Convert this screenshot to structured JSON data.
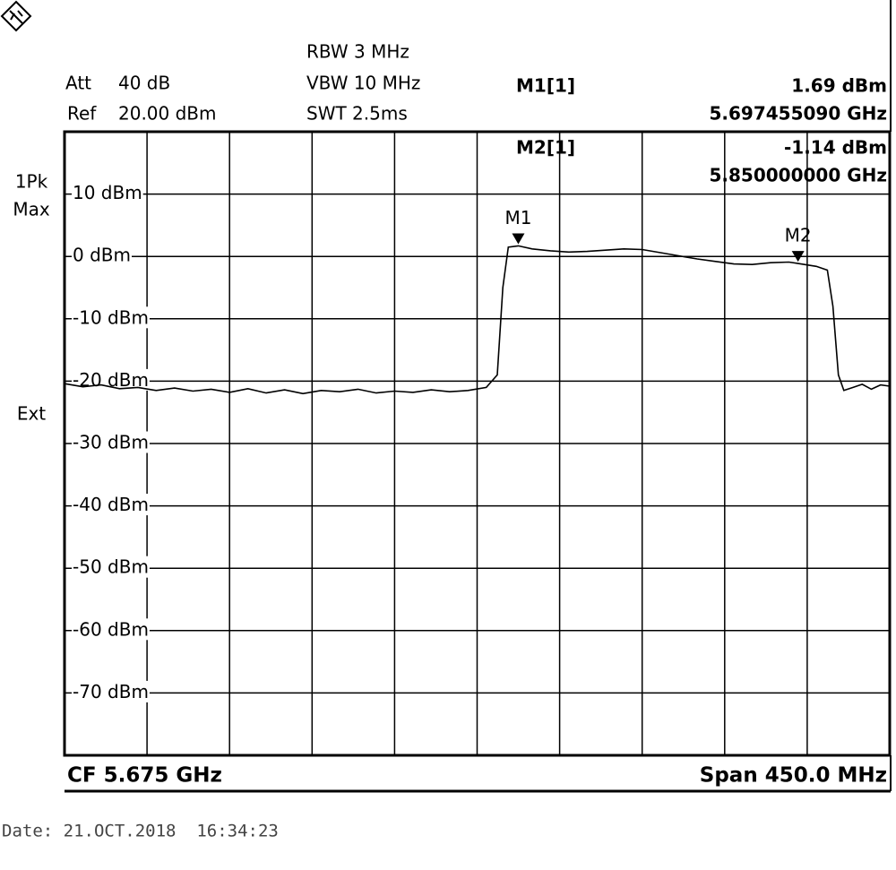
{
  "chart_data": {
    "type": "line",
    "settings": [
      {
        "label": "Att",
        "value": "40 dB"
      },
      {
        "label": "Ref",
        "value": "20.00 dBm"
      }
    ],
    "sweep": [
      "RBW 3 MHz",
      "VBW 10 MHz",
      "SWT 2.5ms"
    ],
    "trace_mode": [
      "1Pk",
      "Max"
    ],
    "trigger": "Ext",
    "center": "CF 5.675 GHz",
    "span": "Span 450.0 MHz",
    "date": "Date: 21.OCT.2018  16:34:23",
    "xlim": [
      5.45,
      5.9
    ],
    "xticks": [
      5.45,
      5.495,
      5.54,
      5.585,
      5.63,
      5.675,
      5.72,
      5.765,
      5.81,
      5.855,
      5.9
    ],
    "ylim": [
      -80,
      20
    ],
    "yticks": [
      {
        "value": 10,
        "label": "10 dBm"
      },
      {
        "value": 0,
        "label": "0 dBm"
      },
      {
        "value": -10,
        "label": "-10 dBm"
      },
      {
        "value": -20,
        "label": "-20 dBm"
      },
      {
        "value": -30,
        "label": "-30 dBm"
      },
      {
        "value": -40,
        "label": "-40 dBm"
      },
      {
        "value": -50,
        "label": "-50 dBm"
      },
      {
        "value": -60,
        "label": "-60 dBm"
      },
      {
        "value": -70,
        "label": "-70 dBm"
      }
    ],
    "grid": true,
    "color": "#000000",
    "x": [
      5.45,
      5.46,
      5.47,
      5.48,
      5.49,
      5.5,
      5.51,
      5.52,
      5.53,
      5.54,
      5.55,
      5.56,
      5.57,
      5.58,
      5.59,
      5.6,
      5.61,
      5.62,
      5.63,
      5.64,
      5.65,
      5.66,
      5.67,
      5.68,
      5.686,
      5.689,
      5.692,
      5.69745509,
      5.705,
      5.715,
      5.725,
      5.735,
      5.745,
      5.755,
      5.765,
      5.775,
      5.785,
      5.795,
      5.805,
      5.815,
      5.825,
      5.835,
      5.845,
      5.85,
      5.86,
      5.866,
      5.869,
      5.872,
      5.875,
      5.88,
      5.885,
      5.89,
      5.895,
      5.9
    ],
    "values": [
      -20.4,
      -20.9,
      -20.6,
      -21.2,
      -21.0,
      -21.5,
      -21.1,
      -21.6,
      -21.3,
      -21.8,
      -21.2,
      -21.9,
      -21.4,
      -22.0,
      -21.5,
      -21.7,
      -21.3,
      -21.9,
      -21.6,
      -21.8,
      -21.4,
      -21.7,
      -21.5,
      -21.0,
      -19,
      -5,
      1.5,
      1.69,
      1.2,
      0.9,
      0.7,
      0.8,
      1.0,
      1.2,
      1.1,
      0.6,
      0.1,
      -0.4,
      -0.8,
      -1.2,
      -1.3,
      -1.0,
      -0.9,
      -1.14,
      -1.6,
      -2.2,
      -8,
      -19,
      -21.5,
      -21,
      -20.5,
      -21.3,
      -20.6,
      -20.8
    ],
    "markers": [
      {
        "name": "M1",
        "readout": "M1[1]",
        "x": 5.69745509,
        "y": 1.69,
        "y_label": "1.69 dBm",
        "x_label": "5.697455090 GHz"
      },
      {
        "name": "M2",
        "readout": "M2[1]",
        "x": 5.85,
        "y": -1.14,
        "y_label": "-1.14 dBm",
        "x_label": "5.850000000 GHz"
      }
    ]
  }
}
